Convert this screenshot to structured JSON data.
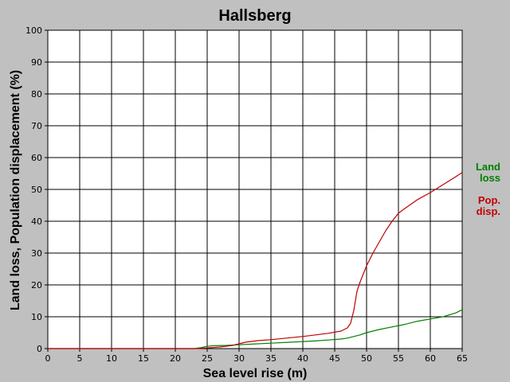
{
  "chart_data": {
    "type": "line",
    "title": "Hallsberg",
    "xlabel": "Sea level rise (m)",
    "ylabel": "Land loss, Population displacement (%)",
    "xlim": [
      0,
      65
    ],
    "ylim": [
      0,
      100
    ],
    "x_ticks": [
      "0",
      "5",
      "10",
      "15",
      "20",
      "25",
      "30",
      "35",
      "40",
      "45",
      "50",
      "55",
      "60",
      "65"
    ],
    "y_ticks": [
      "0",
      "10",
      "20",
      "30",
      "40",
      "50",
      "60",
      "70",
      "80",
      "90",
      "100"
    ],
    "grid": true,
    "colors": {
      "background": "#c0c0c0",
      "plot": "#ffffff",
      "grid": "#000000",
      "land": "#008000",
      "pop": "#c00000"
    },
    "legend": [
      {
        "key": "land",
        "lines": [
          "Land",
          "loss"
        ],
        "color": "#008000"
      },
      {
        "key": "pop",
        "lines": [
          "Pop.",
          "disp."
        ],
        "color": "#c00000"
      }
    ],
    "series": [
      {
        "key": "land",
        "x": [
          0,
          23,
          24,
          25,
          26,
          28,
          30,
          32,
          35,
          38,
          40,
          42,
          44,
          46,
          47,
          48,
          49,
          50,
          52,
          54,
          56,
          58,
          60,
          62,
          64,
          65
        ],
        "y": [
          0,
          0,
          0.3,
          0.7,
          0.9,
          1.0,
          1.2,
          1.4,
          1.7,
          2.0,
          2.2,
          2.4,
          2.7,
          3.0,
          3.3,
          3.8,
          4.3,
          5.0,
          6.0,
          6.8,
          7.6,
          8.6,
          9.3,
          10.0,
          11.2,
          12.2
        ]
      },
      {
        "key": "pop",
        "x": [
          0,
          23,
          25,
          27,
          29,
          31,
          33,
          35,
          37,
          40,
          42,
          44,
          46,
          47,
          47.5,
          48,
          48.5,
          49,
          50,
          51,
          52,
          53,
          54,
          55,
          56,
          58,
          60,
          62,
          64,
          65
        ],
        "y": [
          0,
          0,
          0.2,
          0.5,
          1.0,
          2.0,
          2.5,
          2.8,
          3.2,
          3.8,
          4.3,
          4.8,
          5.5,
          6.5,
          8.0,
          12.0,
          18.0,
          21.0,
          26.0,
          30.0,
          33.5,
          37.0,
          40.0,
          42.5,
          44.0,
          46.8,
          49.0,
          51.5,
          54.0,
          55.3
        ]
      }
    ]
  }
}
